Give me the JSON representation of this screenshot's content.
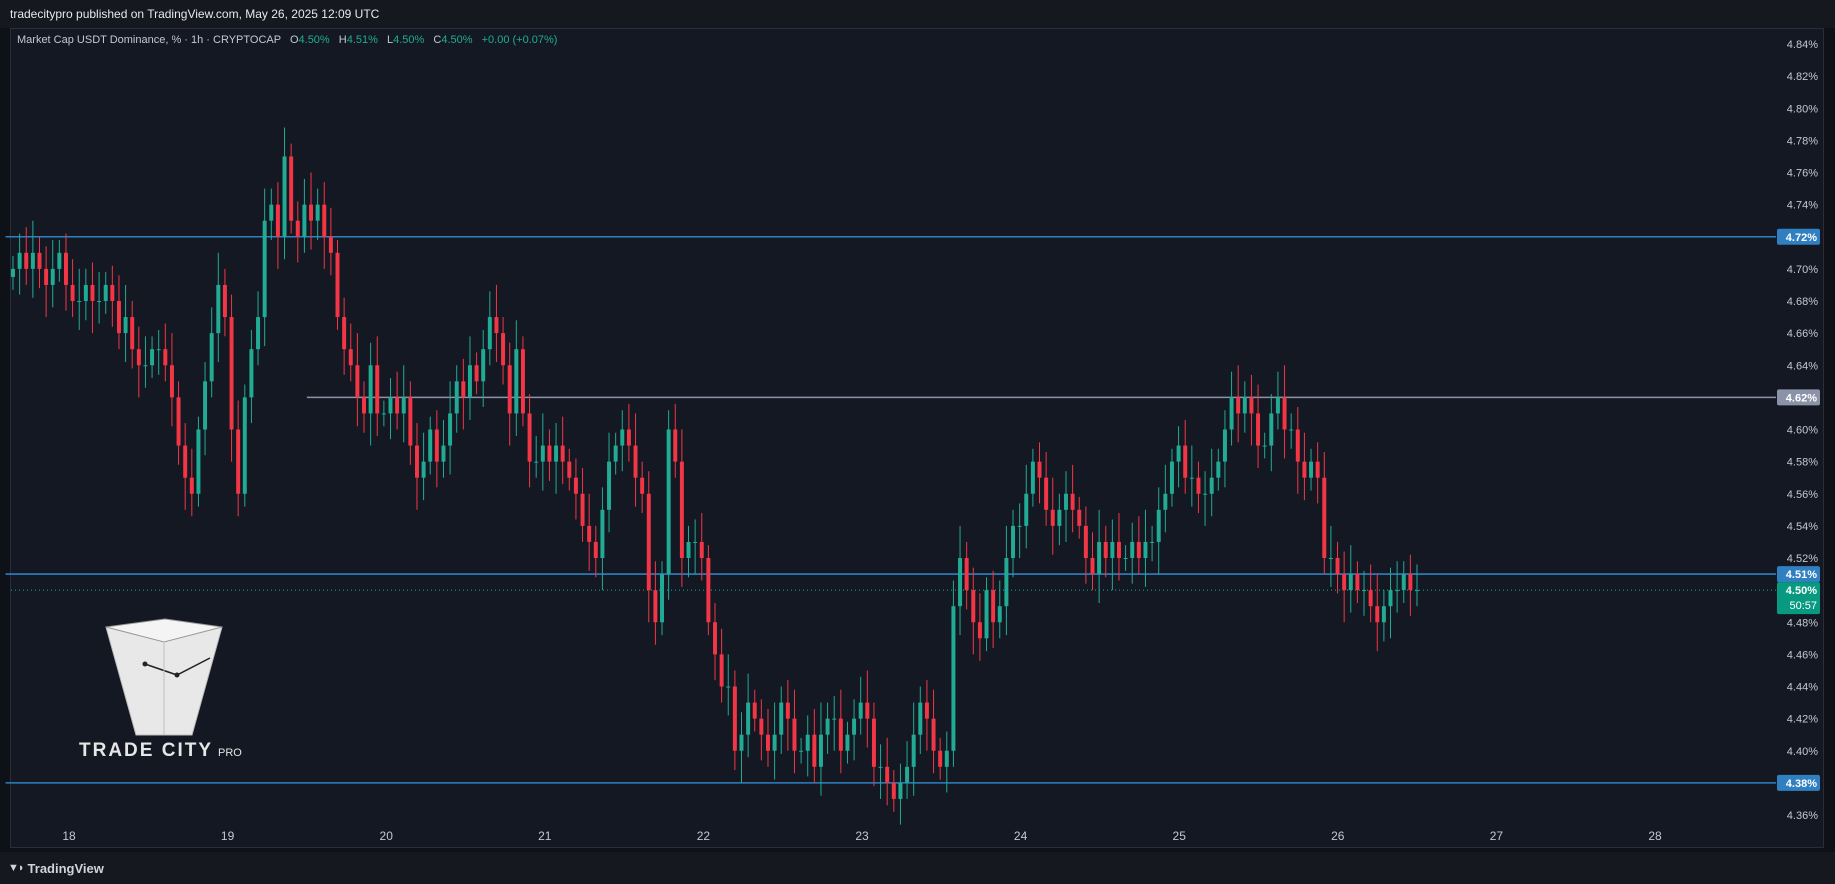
{
  "header": {
    "published_text": "tradecitypro published on TradingView.com, May 26, 2025 12:09 UTC"
  },
  "footer": {
    "brand": "TradingView",
    "brand_icon": "tradingview-logo-icon"
  },
  "legend": {
    "symbol": "Market Cap USDT Dominance, % · 1h · CRYPTOCAP",
    "open_label": "O",
    "open": "4.50%",
    "high_label": "H",
    "high": "4.51%",
    "low_label": "L",
    "low": "4.50%",
    "close_label": "C",
    "close": "4.50%",
    "change": "+0.00 (+0.07%)"
  },
  "watermark": {
    "name": "TRADE CITY",
    "suffix": "PRO",
    "icon": "trade-city-pyramid-logo"
  },
  "colors": {
    "up": "#22ab94",
    "down": "#f23645",
    "level_line": "#2f7fc1",
    "mid_line": "#9aa4b8",
    "bg": "#141823"
  },
  "chart_data": {
    "type": "candlestick",
    "ylim": [
      4.35,
      4.85
    ],
    "y_ticks": [
      "4.84%",
      "4.82%",
      "4.80%",
      "4.78%",
      "4.76%",
      "4.74%",
      "4.72%",
      "4.70%",
      "4.68%",
      "4.66%",
      "4.64%",
      "4.62%",
      "4.60%",
      "4.58%",
      "4.56%",
      "4.54%",
      "4.52%",
      "4.50%",
      "4.48%",
      "4.46%",
      "4.44%",
      "4.42%",
      "4.40%",
      "4.38%",
      "4.36%"
    ],
    "y_tick_values": [
      4.84,
      4.82,
      4.8,
      4.78,
      4.76,
      4.74,
      4.72,
      4.7,
      4.68,
      4.66,
      4.64,
      4.62,
      4.6,
      4.58,
      4.56,
      4.54,
      4.52,
      4.5,
      4.48,
      4.46,
      4.44,
      4.42,
      4.4,
      4.38,
      4.36
    ],
    "x_ticks": [
      "18",
      "19",
      "20",
      "21",
      "22",
      "23",
      "24",
      "25",
      "26",
      "27",
      "28"
    ],
    "x_tick_days": [
      18,
      19,
      20,
      21,
      22,
      23,
      24,
      25,
      26,
      27,
      28
    ],
    "x_range_days": [
      17.6,
      28.8
    ],
    "horizontal_levels": [
      {
        "value": 4.72,
        "label": "4.72%",
        "color": "#2f7fc1",
        "start_day": 17.6
      },
      {
        "value": 4.62,
        "label": "4.62%",
        "color": "#8a93a8",
        "start_day": 19.5
      },
      {
        "value": 4.51,
        "label": "4.51%",
        "color": "#2f7fc1",
        "start_day": 17.6
      },
      {
        "value": 4.38,
        "label": "4.38%",
        "color": "#2f7fc1",
        "start_day": 17.6
      }
    ],
    "last_price": {
      "value": 4.5,
      "label": "4.50%",
      "countdown": "50:57"
    },
    "closes": [
      4.7,
      4.71,
      4.7,
      4.71,
      4.7,
      4.69,
      4.7,
      4.71,
      4.69,
      4.68,
      4.68,
      4.69,
      4.68,
      4.68,
      4.69,
      4.68,
      4.66,
      4.67,
      4.65,
      4.64,
      4.64,
      4.65,
      4.65,
      4.64,
      4.62,
      4.59,
      4.57,
      4.56,
      4.6,
      4.63,
      4.66,
      4.69,
      4.67,
      4.6,
      4.56,
      4.62,
      4.65,
      4.67,
      4.73,
      4.74,
      4.72,
      4.77,
      4.73,
      4.72,
      4.74,
      4.73,
      4.74,
      4.72,
      4.71,
      4.67,
      4.65,
      4.64,
      4.62,
      4.61,
      4.64,
      4.61,
      4.61,
      4.62,
      4.61,
      4.62,
      4.59,
      4.57,
      4.58,
      4.6,
      4.58,
      4.59,
      4.61,
      4.63,
      4.62,
      4.64,
      4.63,
      4.65,
      4.67,
      4.66,
      4.64,
      4.61,
      4.65,
      4.61,
      4.58,
      4.58,
      4.59,
      4.58,
      4.59,
      4.58,
      4.57,
      4.56,
      4.54,
      4.53,
      4.52,
      4.55,
      4.58,
      4.59,
      4.6,
      4.59,
      4.57,
      4.56,
      4.5,
      4.48,
      4.51,
      4.6,
      4.58,
      4.52,
      4.53,
      4.53,
      4.52,
      4.48,
      4.46,
      4.44,
      4.44,
      4.4,
      4.41,
      4.43,
      4.42,
      4.41,
      4.4,
      4.41,
      4.43,
      4.42,
      4.4,
      4.4,
      4.41,
      4.39,
      4.41,
      4.42,
      4.42,
      4.4,
      4.41,
      4.42,
      4.43,
      4.42,
      4.39,
      4.39,
      4.38,
      4.37,
      4.38,
      4.39,
      4.41,
      4.43,
      4.42,
      4.4,
      4.39,
      4.4,
      4.49,
      4.52,
      4.5,
      4.48,
      4.47,
      4.5,
      4.48,
      4.49,
      4.52,
      4.54,
      4.54,
      4.56,
      4.58,
      4.57,
      4.55,
      4.54,
      4.55,
      4.56,
      4.55,
      4.54,
      4.52,
      4.51,
      4.53,
      4.52,
      4.53,
      4.52,
      4.52,
      4.53,
      4.52,
      4.53,
      4.53,
      4.55,
      4.56,
      4.58,
      4.59,
      4.57,
      4.57,
      4.56,
      4.56,
      4.57,
      4.58,
      4.6,
      4.62,
      4.61,
      4.62,
      4.61,
      4.59,
      4.59,
      4.61,
      4.62,
      4.6,
      4.6,
      4.58,
      4.57,
      4.58,
      4.57,
      4.52,
      4.52,
      4.51,
      4.5,
      4.51,
      4.5,
      4.5,
      4.49,
      4.48,
      4.49,
      4.5,
      4.5,
      4.51,
      4.5,
      4.5
    ],
    "x_start_day": 17.6,
    "interval_hours": 1
  }
}
